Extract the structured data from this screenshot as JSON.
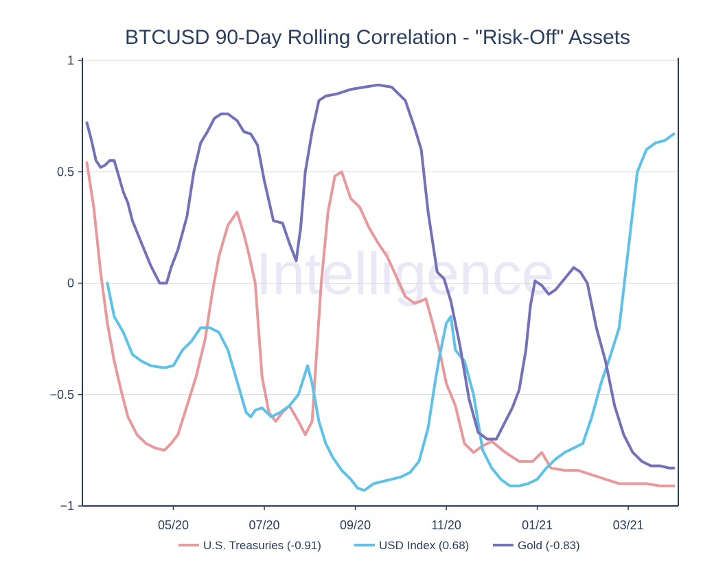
{
  "chart_data": {
    "type": "line",
    "title": "BTCUSD 90-Day Rolling Correlation - \"Risk-Off\" Assets",
    "xlabel": "",
    "ylabel": "",
    "watermark": "Intelligence",
    "ylim": [
      -1,
      1
    ],
    "xlim": [
      0,
      13.1
    ],
    "yticks": [
      {
        "value": 1,
        "label": "1"
      },
      {
        "value": 0.5,
        "label": "0.5"
      },
      {
        "value": 0,
        "label": "0"
      },
      {
        "value": -0.5,
        "label": "−0.5"
      },
      {
        "value": -1,
        "label": "−1"
      }
    ],
    "xticks": [
      {
        "value": 2,
        "label": "05/20"
      },
      {
        "value": 4,
        "label": "07/20"
      },
      {
        "value": 6,
        "label": "09/20"
      },
      {
        "value": 8,
        "label": "11/20"
      },
      {
        "value": 10,
        "label": "01/21"
      },
      {
        "value": 12,
        "label": "03/21"
      }
    ],
    "grid": true,
    "legend_position": "bottom",
    "series": [
      {
        "name": "U.S. Treasuries (-0.91)",
        "color": "#e8999b",
        "x": [
          0.1,
          0.25,
          0.4,
          0.55,
          0.7,
          0.85,
          1.0,
          1.2,
          1.4,
          1.6,
          1.8,
          1.95,
          2.1,
          2.3,
          2.5,
          2.7,
          2.85,
          3.0,
          3.2,
          3.4,
          3.55,
          3.65,
          3.8,
          3.95,
          4.1,
          4.25,
          4.4,
          4.55,
          4.75,
          4.9,
          5.05,
          5.25,
          5.4,
          5.55,
          5.7,
          5.9,
          6.1,
          6.3,
          6.5,
          6.7,
          6.9,
          7.1,
          7.3,
          7.45,
          7.55,
          7.7,
          7.85,
          8.0,
          8.2,
          8.4,
          8.6,
          8.8,
          9.0,
          9.3,
          9.6,
          9.9,
          10.1,
          10.3,
          10.6,
          10.9,
          11.2,
          11.5,
          11.8,
          12.1,
          12.4,
          12.7,
          13.0
        ],
        "y": [
          0.54,
          0.34,
          0.05,
          -0.18,
          -0.35,
          -0.48,
          -0.6,
          -0.68,
          -0.72,
          -0.74,
          -0.75,
          -0.72,
          -0.68,
          -0.55,
          -0.42,
          -0.25,
          -0.05,
          0.12,
          0.26,
          0.32,
          0.22,
          0.14,
          0.0,
          -0.42,
          -0.58,
          -0.62,
          -0.58,
          -0.55,
          -0.62,
          -0.68,
          -0.62,
          0.0,
          0.32,
          0.48,
          0.5,
          0.38,
          0.34,
          0.25,
          0.18,
          0.12,
          0.03,
          -0.06,
          -0.09,
          -0.08,
          -0.07,
          -0.18,
          -0.3,
          -0.45,
          -0.55,
          -0.72,
          -0.76,
          -0.73,
          -0.71,
          -0.76,
          -0.8,
          -0.8,
          -0.76,
          -0.83,
          -0.84,
          -0.84,
          -0.86,
          -0.88,
          -0.9,
          -0.9,
          -0.9,
          -0.91,
          -0.91
        ]
      },
      {
        "name": "USD Index (0.68)",
        "color": "#5dc1e8",
        "x": [
          0.55,
          0.7,
          0.9,
          1.1,
          1.3,
          1.5,
          1.8,
          2.0,
          2.2,
          2.4,
          2.6,
          2.8,
          3.0,
          3.2,
          3.4,
          3.6,
          3.7,
          3.8,
          3.95,
          4.15,
          4.35,
          4.55,
          4.75,
          4.95,
          5.05,
          5.2,
          5.35,
          5.5,
          5.7,
          5.9,
          6.05,
          6.2,
          6.4,
          6.6,
          6.8,
          7.0,
          7.2,
          7.4,
          7.6,
          7.75,
          7.85,
          8.0,
          8.1,
          8.2,
          8.4,
          8.6,
          8.8,
          9.0,
          9.2,
          9.4,
          9.6,
          9.8,
          10.0,
          10.2,
          10.4,
          10.6,
          10.8,
          11.0,
          11.2,
          11.4,
          11.6,
          11.8,
          12.0,
          12.2,
          12.4,
          12.6,
          12.8,
          13.0
        ],
        "y": [
          0.0,
          -0.15,
          -0.22,
          -0.32,
          -0.35,
          -0.37,
          -0.38,
          -0.37,
          -0.3,
          -0.26,
          -0.2,
          -0.2,
          -0.22,
          -0.3,
          -0.44,
          -0.58,
          -0.6,
          -0.57,
          -0.56,
          -0.6,
          -0.58,
          -0.55,
          -0.5,
          -0.37,
          -0.45,
          -0.62,
          -0.72,
          -0.78,
          -0.84,
          -0.88,
          -0.92,
          -0.93,
          -0.9,
          -0.89,
          -0.88,
          -0.87,
          -0.85,
          -0.8,
          -0.65,
          -0.45,
          -0.33,
          -0.18,
          -0.15,
          -0.3,
          -0.35,
          -0.5,
          -0.75,
          -0.83,
          -0.88,
          -0.91,
          -0.91,
          -0.9,
          -0.88,
          -0.83,
          -0.79,
          -0.76,
          -0.74,
          -0.72,
          -0.6,
          -0.45,
          -0.33,
          -0.2,
          0.15,
          0.5,
          0.6,
          0.63,
          0.64,
          0.67
        ]
      },
      {
        "name": "Gold (-0.83)",
        "color": "#7471b8",
        "x": [
          0.1,
          0.2,
          0.3,
          0.4,
          0.5,
          0.6,
          0.7,
          0.8,
          0.9,
          1.0,
          1.1,
          1.3,
          1.5,
          1.7,
          1.85,
          1.95,
          2.1,
          2.3,
          2.45,
          2.6,
          2.75,
          2.9,
          3.05,
          3.2,
          3.4,
          3.55,
          3.7,
          3.85,
          4.0,
          4.2,
          4.4,
          4.55,
          4.7,
          4.8,
          4.9,
          5.05,
          5.2,
          5.35,
          5.6,
          5.9,
          6.2,
          6.5,
          6.8,
          7.1,
          7.3,
          7.45,
          7.6,
          7.8,
          7.95,
          8.1,
          8.3,
          8.5,
          8.7,
          8.9,
          9.1,
          9.3,
          9.45,
          9.6,
          9.75,
          9.85,
          9.95,
          10.1,
          10.25,
          10.4,
          10.6,
          10.8,
          10.95,
          11.1,
          11.3,
          11.5,
          11.7,
          11.9,
          12.1,
          12.3,
          12.5,
          12.7,
          12.9,
          13.0
        ],
        "y": [
          0.72,
          0.64,
          0.55,
          0.52,
          0.53,
          0.55,
          0.55,
          0.48,
          0.41,
          0.36,
          0.28,
          0.18,
          0.08,
          0.0,
          0.0,
          0.07,
          0.15,
          0.3,
          0.5,
          0.63,
          0.68,
          0.74,
          0.76,
          0.76,
          0.73,
          0.68,
          0.67,
          0.62,
          0.46,
          0.28,
          0.27,
          0.18,
          0.1,
          0.25,
          0.5,
          0.68,
          0.82,
          0.84,
          0.85,
          0.87,
          0.88,
          0.89,
          0.88,
          0.82,
          0.7,
          0.6,
          0.32,
          0.05,
          0.02,
          -0.08,
          -0.28,
          -0.52,
          -0.67,
          -0.7,
          -0.7,
          -0.62,
          -0.56,
          -0.48,
          -0.3,
          -0.1,
          0.01,
          -0.01,
          -0.05,
          -0.03,
          0.02,
          0.07,
          0.05,
          0.0,
          -0.2,
          -0.35,
          -0.55,
          -0.68,
          -0.76,
          -0.8,
          -0.82,
          -0.82,
          -0.83,
          -0.83
        ]
      }
    ]
  }
}
